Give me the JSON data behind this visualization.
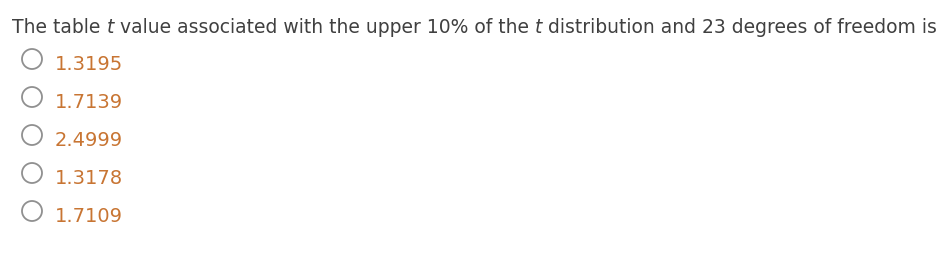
{
  "question_normal_color": "#404040",
  "question_italic_color": "#404040",
  "blank_color": "#404040",
  "option_color": "#c87533",
  "circle_edge_color": "#909090",
  "background_color": "#ffffff",
  "font_size_question": 13.5,
  "font_size_option": 14,
  "options": [
    "1.3195",
    "1.7139",
    "2.4999",
    "1.3178",
    "1.7109"
  ]
}
